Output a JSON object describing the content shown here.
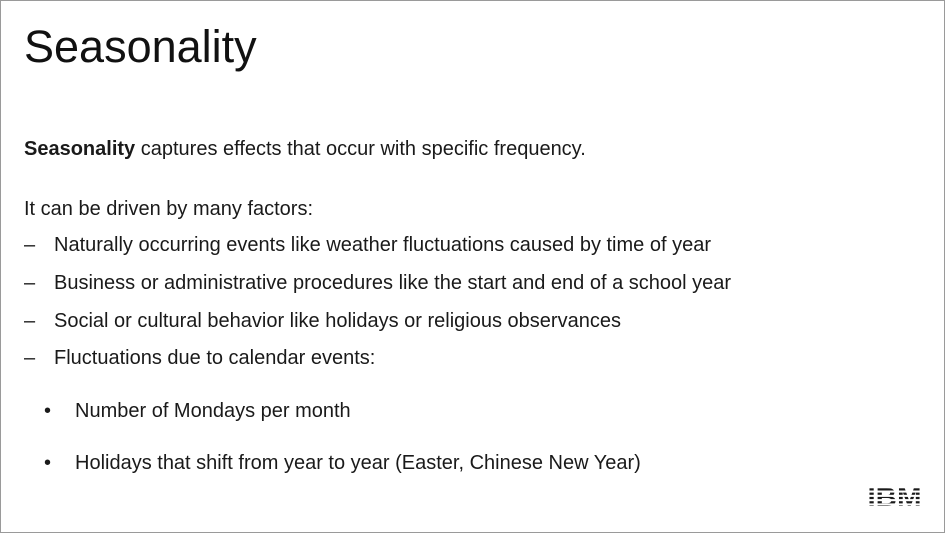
{
  "slide": {
    "title": "Seasonality",
    "intro_bold": "Seasonality",
    "intro_rest": " captures effects that occur with specific frequency.",
    "lead": "It can be driven by many factors:",
    "dash_marker": "–",
    "bullet_marker": "•",
    "items": [
      "Naturally occurring events like weather fluctuations caused by time of year",
      "Business or administrative procedures like the start and end of a school year",
      "Social or cultural behavior like holidays or religious observances",
      "Fluctuations due to calendar events:"
    ],
    "subitems": [
      "Number of Mondays per month",
      "Holidays that shift from year to year (Easter, Chinese New Year)"
    ],
    "logo_text": "IBM"
  }
}
